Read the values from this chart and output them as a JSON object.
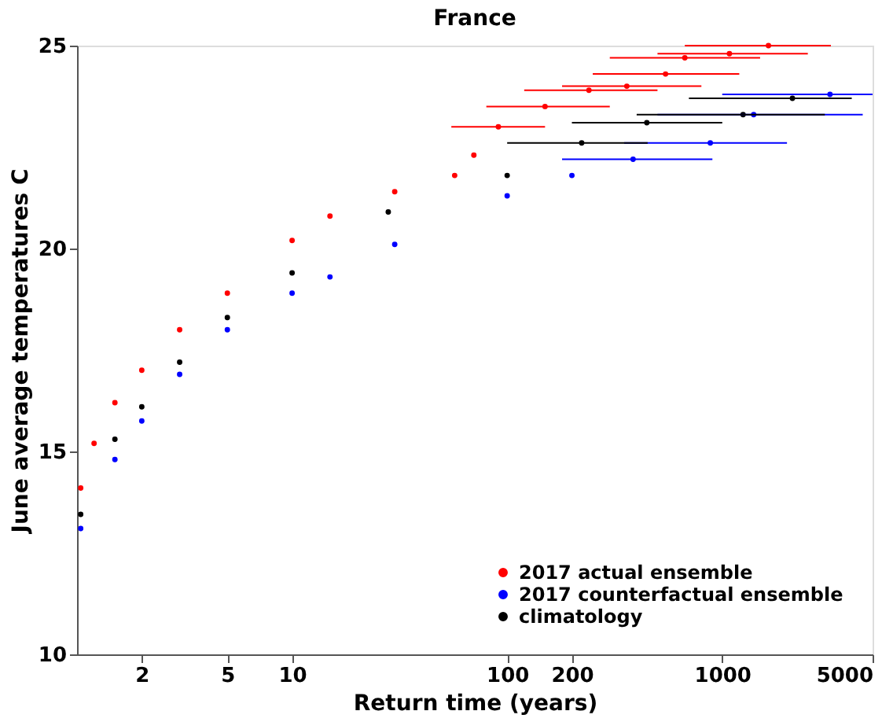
{
  "chart_data": {
    "type": "scatter",
    "title": "France",
    "xlabel": "Return time (years)",
    "ylabel": "June average temperatures C",
    "log": "x",
    "xlim": [
      1,
      5000
    ],
    "xticks": [
      2,
      5,
      10,
      100,
      200,
      1000,
      5000
    ],
    "ylim": [
      10,
      25
    ],
    "yticks": [
      10,
      15,
      20,
      25
    ],
    "grid": false,
    "legend": "bottom right",
    "marker": "circle",
    "series": [
      {
        "name": "2017 actual ensemble",
        "color": "#ff0000",
        "x": [
          1.04,
          1.2,
          1.5,
          2,
          3,
          5,
          10,
          15,
          30,
          57,
          70,
          91,
          150,
          240,
          360,
          545,
          670,
          1080,
          1640
        ],
        "values": [
          14.1,
          15.2,
          16.2,
          17.0,
          18.0,
          18.9,
          20.2,
          20.8,
          21.4,
          21.8,
          22.3,
          23.0,
          23.5,
          23.9,
          24.0,
          24.3,
          24.7,
          24.8,
          25.0
        ],
        "xerrors": [
          null,
          null,
          null,
          null,
          null,
          null,
          null,
          null,
          null,
          null,
          null,
          [
            55,
            150
          ],
          [
            80,
            300
          ],
          [
            120,
            500
          ],
          [
            180,
            800
          ],
          [
            250,
            1200
          ],
          [
            300,
            1500
          ],
          [
            500,
            2500
          ],
          [
            670,
            3200
          ]
        ]
      },
      {
        "name": "2017 counterfactual ensemble",
        "color": "#0000ff",
        "x": [
          1.04,
          1.5,
          2,
          3,
          5,
          10,
          15,
          30,
          100,
          200,
          385,
          880,
          1400,
          3170
        ],
        "values": [
          13.1,
          14.8,
          15.75,
          16.9,
          18.0,
          18.9,
          19.3,
          20.1,
          21.3,
          21.8,
          22.2,
          22.6,
          23.3,
          23.8
        ],
        "xerrors": [
          null,
          null,
          null,
          null,
          null,
          null,
          null,
          null,
          null,
          null,
          [
            180,
            900
          ],
          [
            350,
            2000
          ],
          [
            500,
            4500
          ],
          [
            1000,
            5000
          ]
        ]
      },
      {
        "name": "climatology",
        "color": "#000000",
        "x": [
          1.04,
          1.5,
          2,
          3,
          5,
          10,
          28,
          100,
          222,
          446,
          1250,
          2120
        ],
        "values": [
          13.45,
          15.3,
          16.1,
          17.2,
          18.3,
          19.4,
          20.9,
          21.8,
          22.6,
          23.1,
          23.3,
          23.7
        ],
        "xerrors": [
          null,
          null,
          null,
          null,
          null,
          null,
          null,
          null,
          [
            100,
            450
          ],
          [
            200,
            1000
          ],
          [
            400,
            3000
          ],
          [
            700,
            4000
          ]
        ]
      }
    ]
  }
}
